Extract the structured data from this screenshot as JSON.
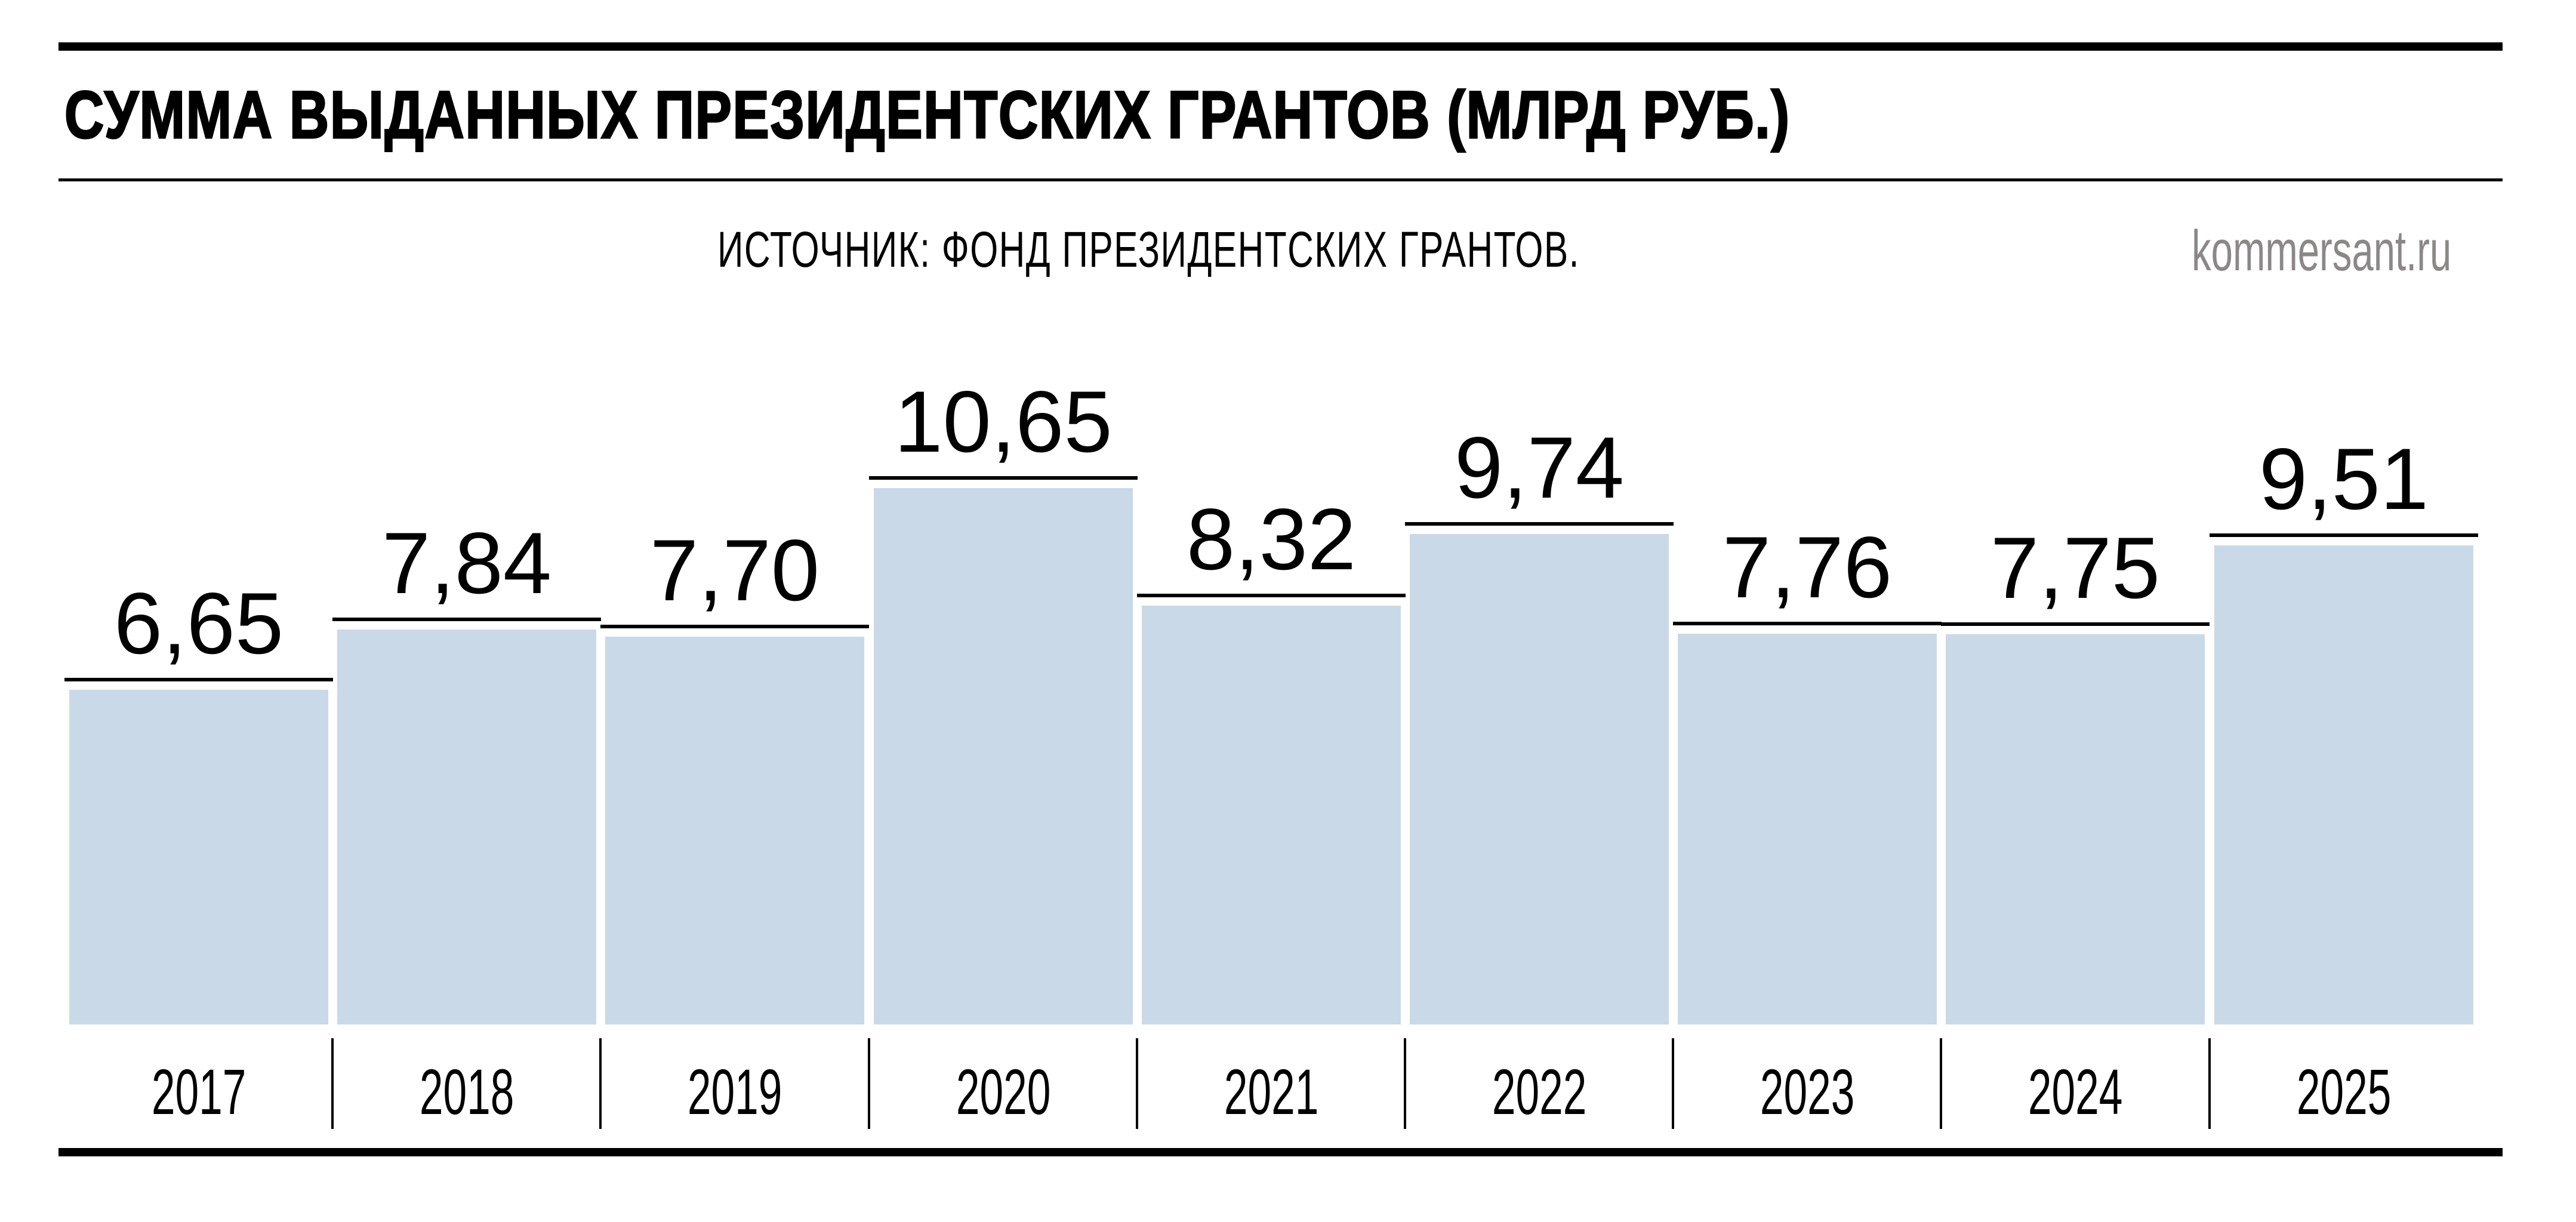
{
  "header": {
    "title": "СУММА ВЫДАННЫХ ПРЕЗИДЕНТСКИХ ГРАНТОВ (МЛРД РУБ.)",
    "source": "ИСТОЧНИК: ФОНД ПРЕЗИДЕНТСКИХ ГРАНТОВ.",
    "brand": "kommersant.ru"
  },
  "colors": {
    "bar": "#c9d9e8",
    "text": "#000000",
    "brand": "#8c8888"
  },
  "chart_data": {
    "type": "bar",
    "title": "СУММА ВЫДАННЫХ ПРЕЗИДЕНТСКИХ ГРАНТОВ (МЛРД РУБ.)",
    "subtitle": "ИСТОЧНИК: ФОНД ПРЕЗИДЕНТСКИХ ГРАНТОВ.",
    "xlabel": "",
    "ylabel": "млрд руб.",
    "categories": [
      "2017",
      "2018",
      "2019",
      "2020",
      "2021",
      "2022",
      "2023",
      "2024",
      "2025"
    ],
    "values": [
      6.65,
      7.84,
      7.7,
      10.65,
      8.32,
      9.74,
      7.76,
      7.75,
      9.51
    ],
    "value_labels": [
      "6,65",
      "7,84",
      "7,70",
      "10,65",
      "8,32",
      "9,74",
      "7,76",
      "7,75",
      "9,51"
    ],
    "ylim": [
      0,
      10.65
    ],
    "grid": false,
    "legend": null
  }
}
